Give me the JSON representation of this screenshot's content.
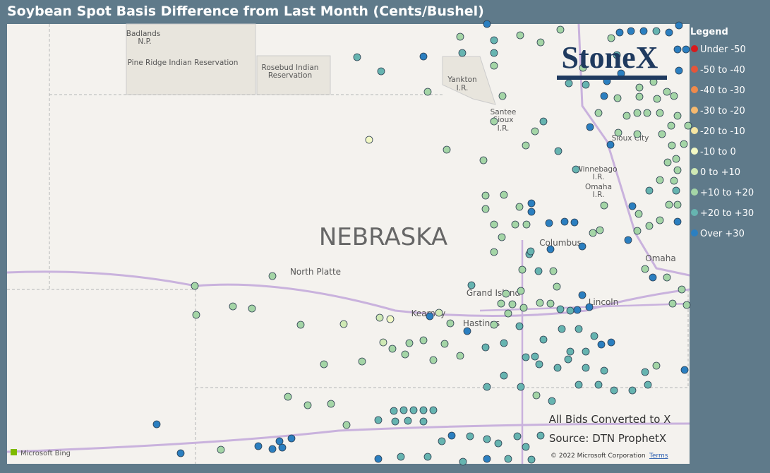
{
  "header": {
    "title": "Soybean Spot Basis Difference from Last Month (Cents/Bushel)"
  },
  "map": {
    "state_label": "NEBRASKA",
    "places": [
      "Badlands",
      "N.P.",
      "Pine Ridge Indian Reservation",
      "Rosebud Indian",
      "Reservation",
      "Yankton",
      "I.R.",
      "Santee",
      "Sioux",
      "I.R.",
      "Sioux City",
      "Winnebago",
      "I.R.",
      "Omaha",
      "I.R.",
      "North Platte",
      "Columbus",
      "Omaha",
      "Grand Island",
      "Lincoln",
      "Kearney",
      "Hastings"
    ],
    "logo": "StoneX",
    "attribution": "Microsoft Bing",
    "copyright": "© 2022 Microsoft Corporation",
    "terms": "Terms"
  },
  "legend": {
    "title": "Legend",
    "items": [
      {
        "label": "Under -50",
        "color": "#d7191c"
      },
      {
        "label": "-50 to -40",
        "color": "#e5553a"
      },
      {
        "label": "-40 to -30",
        "color": "#f08a4b"
      },
      {
        "label": "-30 to -20",
        "color": "#f6b96f"
      },
      {
        "label": "-20 to -10",
        "color": "#f6e6a2"
      },
      {
        "label": "-10 to 0",
        "color": "#f2f8c4"
      },
      {
        "label": "0 to +10",
        "color": "#cfe9b4"
      },
      {
        "label": "+10 to +20",
        "color": "#a4d5a6"
      },
      {
        "label": "+20 to +30",
        "color": "#66b4b0"
      },
      {
        "label": "Over +30",
        "color": "#2b7fc0"
      }
    ]
  },
  "notes": [
    "All Bids Converted to X",
    "Source: DTN ProphetX"
  ]
}
